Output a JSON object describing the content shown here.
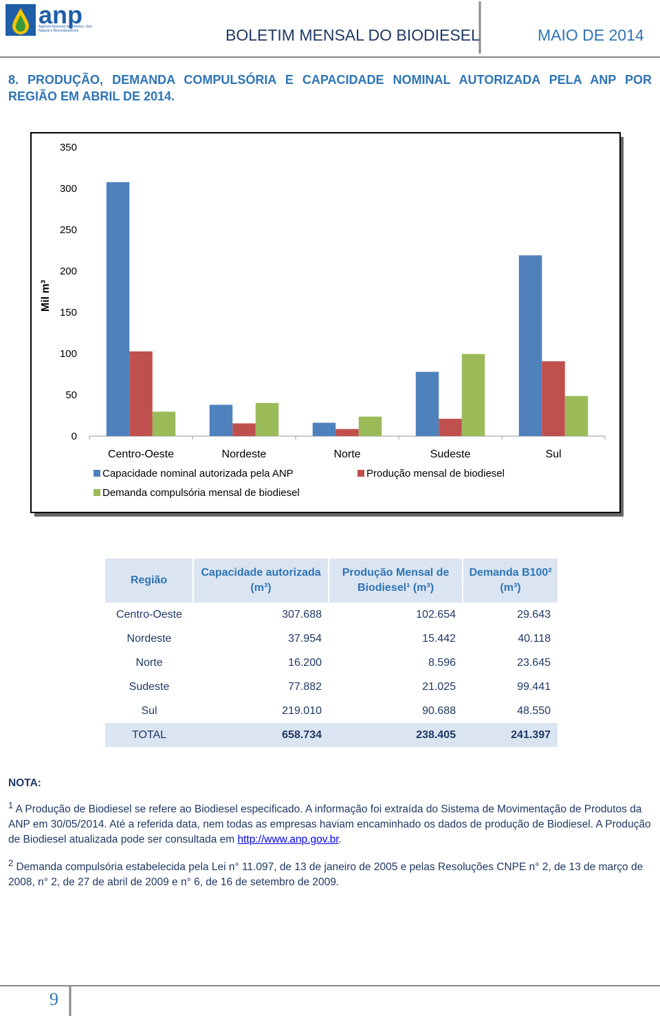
{
  "header": {
    "logo": "anp",
    "agency": "Agência Nacional do Petróleo, Gás Natural e Biocombustíveis",
    "title": "BOLETIM MENSAL DO BIODIESEL",
    "date": "MAIO DE 2014"
  },
  "section": {
    "line1": "8. PRODUÇÃO, DEMANDA COMPULSÓRIA E CAPACIDADE NOMINAL AUTORIZADA PELA ANP POR",
    "line2": "REGIÃO EM ABRIL DE 2014."
  },
  "chart_data": {
    "type": "bar",
    "y_label": "Mil m³",
    "categories": [
      "Centro-Oeste",
      "Nordeste",
      "Norte",
      "Sudeste",
      "Sul"
    ],
    "series": [
      {
        "name": "Capacidade nominal autorizada pela ANP",
        "color": "#4f81bd",
        "values": [
          307.688,
          37.954,
          16.2,
          77.882,
          219.01
        ]
      },
      {
        "name": "Produção mensal de biodiesel",
        "color": "#c0504d",
        "values": [
          102.654,
          15.442,
          8.596,
          21.025,
          90.688
        ]
      },
      {
        "name": "Demanda compulsória mensal de biodiesel",
        "color": "#9bbb59",
        "values": [
          29.643,
          40.118,
          23.645,
          99.441,
          48.55
        ]
      }
    ],
    "ylim": [
      0,
      350
    ],
    "yticks": [
      0,
      50,
      100,
      150,
      200,
      250,
      300,
      350
    ],
    "grid": false
  },
  "table": {
    "headers": [
      "Região",
      "Capacidade autorizada (m³)",
      "Produção Mensal de Biodiesel¹ (m³)",
      "Demanda B100² (m³)"
    ],
    "rows": [
      [
        "Centro-Oeste",
        "307.688",
        "102.654",
        "29.643"
      ],
      [
        "Nordeste",
        "37.954",
        "15.442",
        "40.118"
      ],
      [
        "Norte",
        "16.200",
        "8.596",
        "23.645"
      ],
      [
        "Sudeste",
        "77.882",
        "21.025",
        "99.441"
      ],
      [
        "Sul",
        "219.010",
        "90.688",
        "48.550"
      ],
      [
        "TOTAL",
        "658.734",
        "238.405",
        "241.397"
      ]
    ]
  },
  "notes": {
    "title": "NOTA:",
    "note1": {
      "marker": "1",
      "text": " A Produção de Biodiesel se refere ao Biodiesel especificado. A informação foi extraída do Sistema de Movimentação de Produtos da ANP em 30/05/2014. Até a referida data, nem todas as empresas haviam encaminhado os dados de produção de Biodiesel. A Produção de Biodiesel atualizada pode ser consultada em ",
      "link": "http://www.anp.gov.br",
      "after": "."
    },
    "note2": {
      "marker": "2",
      "text": " Demanda compulsória estabelecida pela Lei n° 11.097, de 13 de janeiro de 2005 e pelas Resoluções CNPE n° 2, de 13 de março de 2008, n° 2, de 27 de abril de 2009 e n° 6, de 16 de setembro de 2009."
    }
  },
  "page_number": "9"
}
